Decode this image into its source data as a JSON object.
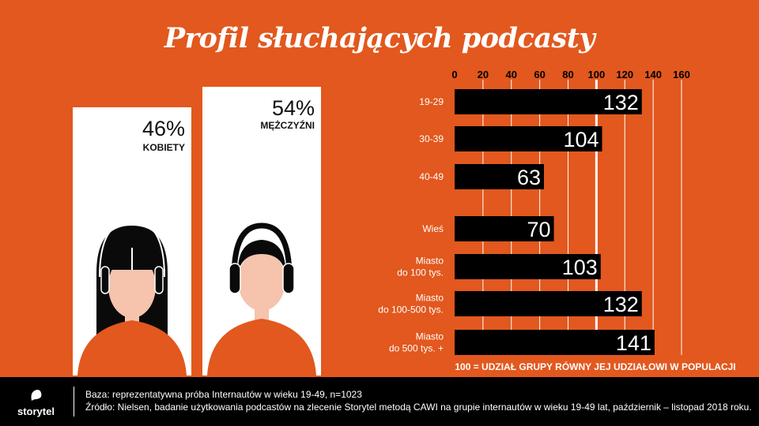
{
  "title": "Profil słuchających podcasty",
  "gender": {
    "female": {
      "pct": "46%",
      "label": "KOBIETY"
    },
    "male": {
      "pct": "54%",
      "label": "MĘŻCZYŹNI"
    }
  },
  "colors": {
    "background": "#e2581e",
    "bar": "#000000",
    "card": "#ffffff",
    "skin": "#f6c3ad",
    "hair": "#0a0a0a"
  },
  "chart_data": {
    "type": "bar",
    "orientation": "horizontal",
    "categories": [
      [
        "19-29"
      ],
      [
        "30-39"
      ],
      [
        "40-49"
      ],
      [
        "Wieś"
      ],
      [
        "Miasto",
        "do 100 tys."
      ],
      [
        "Miasto",
        "do 100-500 tys."
      ],
      [
        "Miasto",
        "do 500 tys. +"
      ]
    ],
    "values": [
      132,
      104,
      63,
      70,
      103,
      132,
      141
    ],
    "xlim": [
      0,
      160
    ],
    "ticks": [
      0,
      20,
      40,
      60,
      80,
      100,
      120,
      140,
      160
    ],
    "reference_line": 100,
    "axis_position": "top",
    "grid": true,
    "note": "100 = UDZIAŁ GRUPY RÓWNY JEJ UDZIAŁOWI W POPULACJI"
  },
  "footer": {
    "logo": "storytel",
    "base": "Baza: reprezentatywna próba Internautów w wieku 19-49, n=1023",
    "source": "Źródło: Nielsen, badanie użytkowania podcastów na zlecenie Storytel metodą CAWI na grupie internautów w wieku 19-49 lat, październik – listopad 2018 roku."
  }
}
